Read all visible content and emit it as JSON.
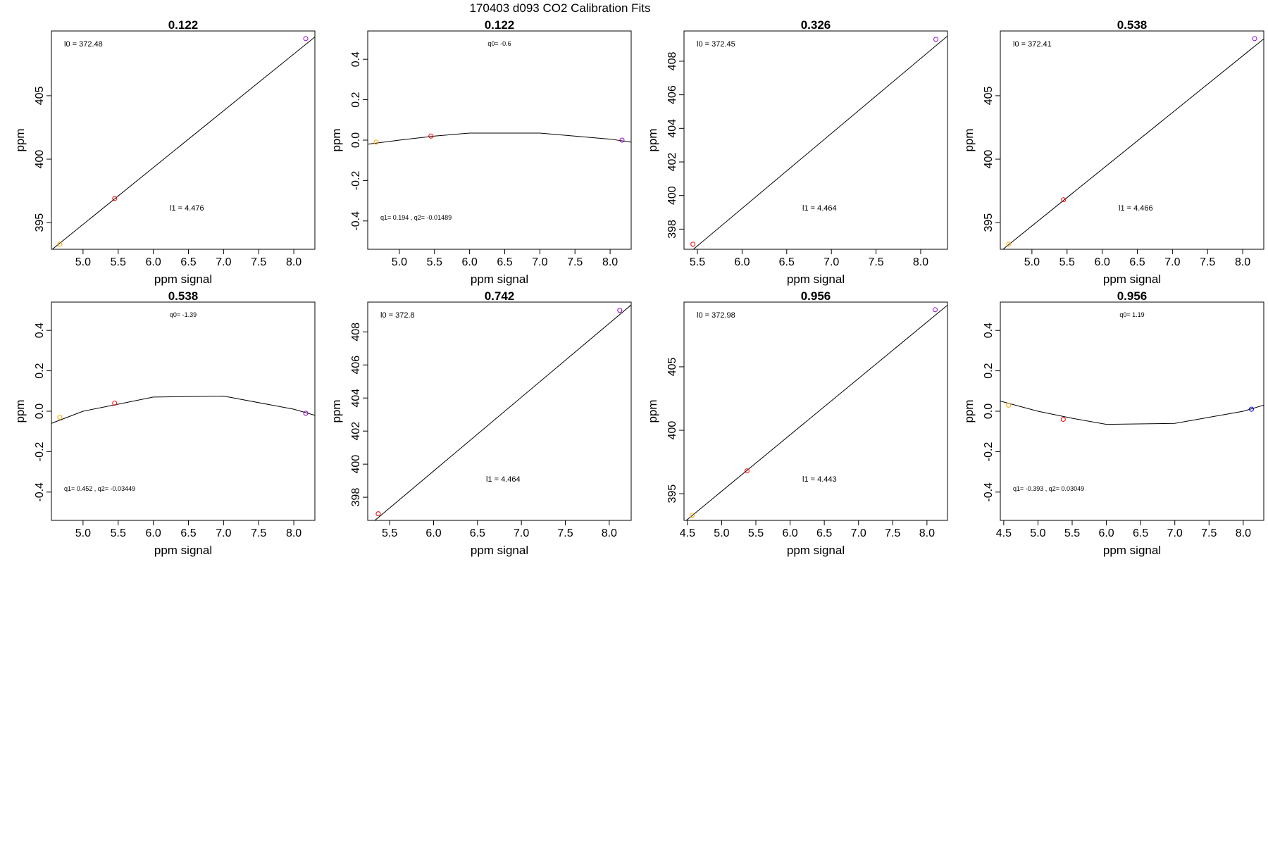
{
  "figure_title": "170403   d093   CO2 Calibration Fits",
  "chart_data": [
    {
      "type": "scatter",
      "fit": "linear",
      "title": "0.122",
      "xlabel": "ppm signal",
      "ylabel": "ppm",
      "xlim": [
        4.55,
        8.3
      ],
      "ylim": [
        392.9,
        410.1
      ],
      "xticks": [
        "5.0",
        "5.5",
        "6.0",
        "6.5",
        "7.0",
        "7.5",
        "8.0"
      ],
      "yticks": [
        "395",
        "400",
        "405"
      ],
      "points": [
        {
          "x": 4.67,
          "y": 393.3,
          "color": "#ffa500"
        },
        {
          "x": 5.45,
          "y": 396.9,
          "color": "#ff0000"
        },
        {
          "x": 8.17,
          "y": 409.5,
          "color": "#9400d3"
        }
      ],
      "line": {
        "intercept": 372.48,
        "slope": 4.476
      },
      "annotations": [
        {
          "text": "l0 =  372.48",
          "pos": "top-left"
        },
        {
          "text": "l1 =  4.476",
          "pos": "center-low"
        }
      ]
    },
    {
      "type": "scatter",
      "fit": "residual",
      "title": "0.122",
      "xlabel": "ppm signal",
      "ylabel": "ppm",
      "xlim": [
        4.55,
        8.3
      ],
      "ylim": [
        -0.54,
        0.54
      ],
      "xticks": [
        "5.0",
        "5.5",
        "6.0",
        "6.5",
        "7.0",
        "7.5",
        "8.0"
      ],
      "yticks": [
        "-0.4",
        "-0.2",
        "0.0",
        "0.2",
        "0.4"
      ],
      "points": [
        {
          "x": 4.67,
          "y": -0.01,
          "color": "#ffa500"
        },
        {
          "x": 5.45,
          "y": 0.02,
          "color": "#ff0000"
        },
        {
          "x": 8.17,
          "y": 0.0,
          "color": "#9400d3"
        }
      ],
      "curve": [
        [
          4.55,
          -0.02
        ],
        [
          5.0,
          0.0
        ],
        [
          5.5,
          0.02
        ],
        [
          6.0,
          0.035
        ],
        [
          7.0,
          0.035
        ],
        [
          8.0,
          0.005
        ],
        [
          8.3,
          -0.01
        ]
      ],
      "annotations": [
        {
          "text": "q0= -0.6",
          "pos": "top-center"
        },
        {
          "text": "q1= 0.194 , q2= -0.01489",
          "pos": "bottom-left"
        }
      ]
    },
    {
      "type": "scatter",
      "fit": "linear",
      "title": "0.326",
      "xlabel": "ppm signal",
      "ylabel": "ppm",
      "xlim": [
        5.35,
        8.3
      ],
      "ylim": [
        396.8,
        409.8
      ],
      "xticks": [
        "5.5",
        "6.0",
        "6.5",
        "7.0",
        "7.5",
        "8.0"
      ],
      "yticks": [
        "398",
        "400",
        "402",
        "404",
        "406",
        "408"
      ],
      "points": [
        {
          "x": 5.45,
          "y": 397.1,
          "color": "#ff0000"
        },
        {
          "x": 8.17,
          "y": 409.3,
          "color": "#9400d3"
        }
      ],
      "line": {
        "intercept": 372.45,
        "slope": 4.464
      },
      "annotations": [
        {
          "text": "l0 =  372.45",
          "pos": "top-left"
        },
        {
          "text": "l1 =  4.464",
          "pos": "center-low"
        }
      ]
    },
    {
      "type": "scatter",
      "fit": "linear",
      "title": "0.538",
      "xlabel": "ppm signal",
      "ylabel": "ppm",
      "xlim": [
        4.55,
        8.3
      ],
      "ylim": [
        392.9,
        410.1
      ],
      "xticks": [
        "5.0",
        "5.5",
        "6.0",
        "6.5",
        "7.0",
        "7.5",
        "8.0"
      ],
      "yticks": [
        "395",
        "400",
        "405"
      ],
      "points": [
        {
          "x": 4.67,
          "y": 393.3,
          "color": "#ffa500"
        },
        {
          "x": 5.45,
          "y": 396.8,
          "color": "#ff0000"
        },
        {
          "x": 8.17,
          "y": 409.5,
          "color": "#9400d3"
        }
      ],
      "line": {
        "intercept": 372.41,
        "slope": 4.466
      },
      "annotations": [
        {
          "text": "l0 =  372.41",
          "pos": "top-left"
        },
        {
          "text": "l1 =  4.466",
          "pos": "center-low"
        }
      ]
    },
    {
      "type": "scatter",
      "fit": "residual",
      "title": "0.538",
      "xlabel": "ppm signal",
      "ylabel": "ppm",
      "xlim": [
        4.55,
        8.3
      ],
      "ylim": [
        -0.54,
        0.54
      ],
      "xticks": [
        "5.0",
        "5.5",
        "6.0",
        "6.5",
        "7.0",
        "7.5",
        "8.0"
      ],
      "yticks": [
        "-0.4",
        "-0.2",
        "0.0",
        "0.2",
        "0.4"
      ],
      "points": [
        {
          "x": 4.67,
          "y": -0.03,
          "color": "#ffa500"
        },
        {
          "x": 5.45,
          "y": 0.04,
          "color": "#ff0000"
        },
        {
          "x": 8.17,
          "y": -0.01,
          "color": "#9400d3"
        }
      ],
      "curve": [
        [
          4.55,
          -0.06
        ],
        [
          5.0,
          0.0
        ],
        [
          5.5,
          0.035
        ],
        [
          6.0,
          0.07
        ],
        [
          7.0,
          0.075
        ],
        [
          8.0,
          0.01
        ],
        [
          8.3,
          -0.02
        ]
      ],
      "annotations": [
        {
          "text": "q0= -1.39",
          "pos": "top-center"
        },
        {
          "text": "q1= 0.452 , q2= -0.03449",
          "pos": "bottom-left"
        }
      ]
    },
    {
      "type": "scatter",
      "fit": "linear",
      "title": "0.742",
      "xlabel": "ppm signal",
      "ylabel": "ppm",
      "xlim": [
        5.25,
        8.25
      ],
      "ylim": [
        396.6,
        409.8
      ],
      "xticks": [
        "5.5",
        "6.0",
        "6.5",
        "7.0",
        "7.5",
        "8.0"
      ],
      "yticks": [
        "398",
        "400",
        "402",
        "404",
        "406",
        "408"
      ],
      "points": [
        {
          "x": 5.37,
          "y": 397.0,
          "color": "#ff0000"
        },
        {
          "x": 8.12,
          "y": 409.3,
          "color": "#9400d3"
        }
      ],
      "line": {
        "intercept": 372.8,
        "slope": 4.464
      },
      "annotations": [
        {
          "text": "l0 =  372.8",
          "pos": "top-left"
        },
        {
          "text": "l1 =  4.464",
          "pos": "center-low"
        }
      ]
    },
    {
      "type": "scatter",
      "fit": "linear",
      "title": "0.956",
      "xlabel": "ppm signal",
      "ylabel": "ppm",
      "xlim": [
        4.45,
        8.3
      ],
      "ylim": [
        392.9,
        410.1
      ],
      "xticks": [
        "4.5",
        "5.0",
        "5.5",
        "6.0",
        "6.5",
        "7.0",
        "7.5",
        "8.0"
      ],
      "yticks": [
        "395",
        "400",
        "405"
      ],
      "points": [
        {
          "x": 4.57,
          "y": 393.3,
          "color": "#ffa500"
        },
        {
          "x": 5.37,
          "y": 396.8,
          "color": "#ff0000"
        },
        {
          "x": 8.12,
          "y": 409.5,
          "color": "#9400d3"
        }
      ],
      "line": {
        "intercept": 372.98,
        "slope": 4.443
      },
      "annotations": [
        {
          "text": "l0 =  372.98",
          "pos": "top-left"
        },
        {
          "text": "l1 =  4.443",
          "pos": "center-low"
        }
      ]
    },
    {
      "type": "scatter",
      "fit": "residual",
      "title": "0.956",
      "xlabel": "ppm signal",
      "ylabel": "ppm",
      "xlim": [
        4.45,
        8.3
      ],
      "ylim": [
        -0.54,
        0.54
      ],
      "xticks": [
        "4.5",
        "5.0",
        "5.5",
        "6.0",
        "6.5",
        "7.0",
        "7.5",
        "8.0"
      ],
      "yticks": [
        "-0.4",
        "-0.2",
        "0.0",
        "0.2",
        "0.4"
      ],
      "points": [
        {
          "x": 4.57,
          "y": 0.03,
          "color": "#ffa500"
        },
        {
          "x": 5.37,
          "y": -0.04,
          "color": "#ff0000"
        },
        {
          "x": 8.12,
          "y": 0.01,
          "color": "#0000ff"
        }
      ],
      "curve": [
        [
          4.45,
          0.05
        ],
        [
          5.0,
          0.0
        ],
        [
          5.5,
          -0.035
        ],
        [
          6.0,
          -0.065
        ],
        [
          7.0,
          -0.06
        ],
        [
          8.0,
          0.0
        ],
        [
          8.3,
          0.03
        ]
      ],
      "annotations": [
        {
          "text": "q0= 1.19",
          "pos": "top-center"
        },
        {
          "text": "q1= -0.393 , q2= 0.03049",
          "pos": "bottom-left"
        }
      ]
    }
  ]
}
